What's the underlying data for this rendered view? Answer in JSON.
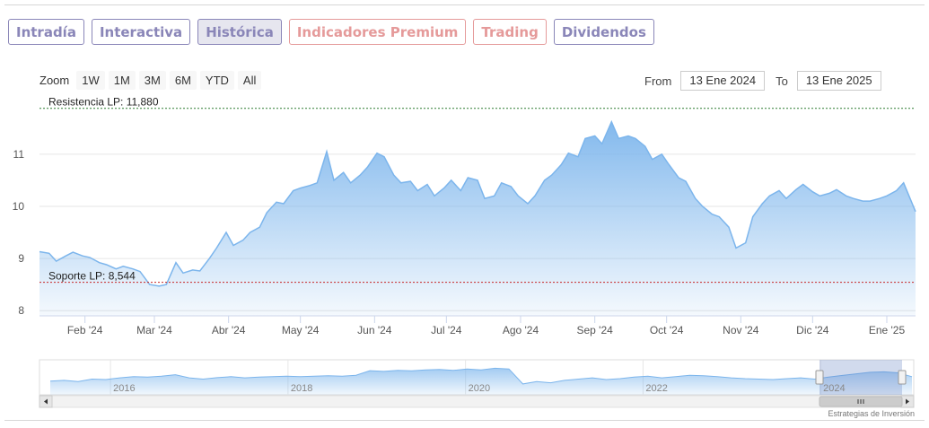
{
  "tabs": [
    {
      "label": "Intradía",
      "style": "normal"
    },
    {
      "label": "Interactiva",
      "style": "normal"
    },
    {
      "label": "Histórica",
      "style": "active"
    },
    {
      "label": "Indicadores Premium",
      "style": "premium"
    },
    {
      "label": "Trading",
      "style": "premium"
    },
    {
      "label": "Dividendos",
      "style": "normal"
    }
  ],
  "zoom": {
    "label": "Zoom",
    "buttons": [
      "1W",
      "1M",
      "3M",
      "6M",
      "YTD",
      "All"
    ]
  },
  "range": {
    "from_label": "From",
    "from_value": "13 Ene 2024",
    "to_label": "To",
    "to_value": "13 Ene 2025"
  },
  "credit": "Estrategias de Inversión",
  "colors": {
    "tab_border": "#8a86b8",
    "premium": "#e59a9a",
    "series_line": "#7cb5ec",
    "resistance": "#2e7d32",
    "support": "#c62828"
  },
  "chart_data": {
    "type": "area",
    "ylim": [
      7.9,
      12.15
    ],
    "yticks": [
      8,
      9,
      10,
      11
    ],
    "xlim": [
      "2024-01-13",
      "2025-01-13"
    ],
    "xticks": [
      {
        "date": "2024-02-01",
        "label": "Feb '24"
      },
      {
        "date": "2024-03-01",
        "label": "Mar '24"
      },
      {
        "date": "2024-04-01",
        "label": "Abr '24"
      },
      {
        "date": "2024-05-01",
        "label": "May '24"
      },
      {
        "date": "2024-06-01",
        "label": "Jun '24"
      },
      {
        "date": "2024-07-01",
        "label": "Jul '24"
      },
      {
        "date": "2024-08-01",
        "label": "Ago '24"
      },
      {
        "date": "2024-09-01",
        "label": "Sep '24"
      },
      {
        "date": "2024-10-01",
        "label": "Oct '24"
      },
      {
        "date": "2024-11-01",
        "label": "Nov '24"
      },
      {
        "date": "2024-12-01",
        "label": "Dic '24"
      },
      {
        "date": "2025-01-01",
        "label": "Ene '25"
      }
    ],
    "reference_lines": [
      {
        "label": "Resistencia LP: 11,880",
        "value": 11.88,
        "color": "#2e7d32"
      },
      {
        "label": "Soporte LP: 8,544",
        "value": 8.544,
        "color": "#c62828"
      }
    ],
    "series": [
      {
        "x": [
          "2024-01-13",
          "2024-01-17",
          "2024-01-20",
          "2024-01-24",
          "2024-01-27",
          "2024-01-31",
          "2024-02-03",
          "2024-02-07",
          "2024-02-10",
          "2024-02-14",
          "2024-02-17",
          "2024-02-21",
          "2024-02-24",
          "2024-02-28",
          "2024-03-03",
          "2024-03-06",
          "2024-03-10",
          "2024-03-13",
          "2024-03-17",
          "2024-03-20",
          "2024-03-24",
          "2024-03-27",
          "2024-03-31",
          "2024-04-03",
          "2024-04-07",
          "2024-04-10",
          "2024-04-14",
          "2024-04-17",
          "2024-04-21",
          "2024-04-24",
          "2024-04-28",
          "2024-05-01",
          "2024-05-05",
          "2024-05-08",
          "2024-05-12",
          "2024-05-15",
          "2024-05-19",
          "2024-05-22",
          "2024-05-26",
          "2024-05-29",
          "2024-06-02",
          "2024-06-05",
          "2024-06-09",
          "2024-06-12",
          "2024-06-16",
          "2024-06-19",
          "2024-06-23",
          "2024-06-26",
          "2024-06-30",
          "2024-07-03",
          "2024-07-07",
          "2024-07-10",
          "2024-07-14",
          "2024-07-17",
          "2024-07-21",
          "2024-07-24",
          "2024-07-28",
          "2024-07-31",
          "2024-08-04",
          "2024-08-07",
          "2024-08-11",
          "2024-08-14",
          "2024-08-18",
          "2024-08-21",
          "2024-08-25",
          "2024-08-28",
          "2024-09-01",
          "2024-09-04",
          "2024-09-08",
          "2024-09-11",
          "2024-09-15",
          "2024-09-18",
          "2024-09-22",
          "2024-09-25",
          "2024-09-29",
          "2024-10-02",
          "2024-10-06",
          "2024-10-09",
          "2024-10-13",
          "2024-10-16",
          "2024-10-20",
          "2024-10-23",
          "2024-10-27",
          "2024-10-30",
          "2024-11-03",
          "2024-11-06",
          "2024-11-10",
          "2024-11-13",
          "2024-11-17",
          "2024-11-20",
          "2024-11-24",
          "2024-11-27",
          "2024-12-01",
          "2024-12-04",
          "2024-12-08",
          "2024-12-11",
          "2024-12-15",
          "2024-12-18",
          "2024-12-22",
          "2024-12-25",
          "2024-12-29",
          "2025-01-01",
          "2025-01-05",
          "2025-01-08",
          "2025-01-13"
        ],
        "y": [
          9.13,
          9.1,
          8.95,
          9.05,
          9.12,
          9.05,
          9.02,
          8.92,
          8.88,
          8.8,
          8.85,
          8.8,
          8.75,
          8.5,
          8.47,
          8.5,
          8.92,
          8.72,
          8.78,
          8.76,
          9.0,
          9.2,
          9.5,
          9.25,
          9.35,
          9.5,
          9.6,
          9.88,
          10.08,
          10.05,
          10.3,
          10.35,
          10.4,
          10.45,
          11.05,
          10.5,
          10.65,
          10.45,
          10.6,
          10.75,
          11.02,
          10.95,
          10.6,
          10.45,
          10.48,
          10.3,
          10.42,
          10.2,
          10.35,
          10.5,
          10.3,
          10.55,
          10.5,
          10.15,
          10.2,
          10.45,
          10.38,
          10.2,
          10.05,
          10.2,
          10.5,
          10.6,
          10.8,
          11.02,
          10.95,
          11.3,
          11.35,
          11.2,
          11.62,
          11.3,
          11.35,
          11.3,
          11.15,
          10.9,
          11.0,
          10.8,
          10.55,
          10.48,
          10.15,
          10.0,
          9.85,
          9.8,
          9.6,
          9.2,
          9.3,
          9.8,
          10.05,
          10.2,
          10.3,
          10.15,
          10.32,
          10.42,
          10.28,
          10.2,
          10.25,
          10.32,
          10.2,
          10.15,
          10.1,
          10.1,
          10.15,
          10.2,
          10.3,
          10.45,
          9.9
        ]
      }
    ],
    "navigator": {
      "x_labels": [
        "2016",
        "2018",
        "2020",
        "2022",
        "2024"
      ]
    }
  }
}
